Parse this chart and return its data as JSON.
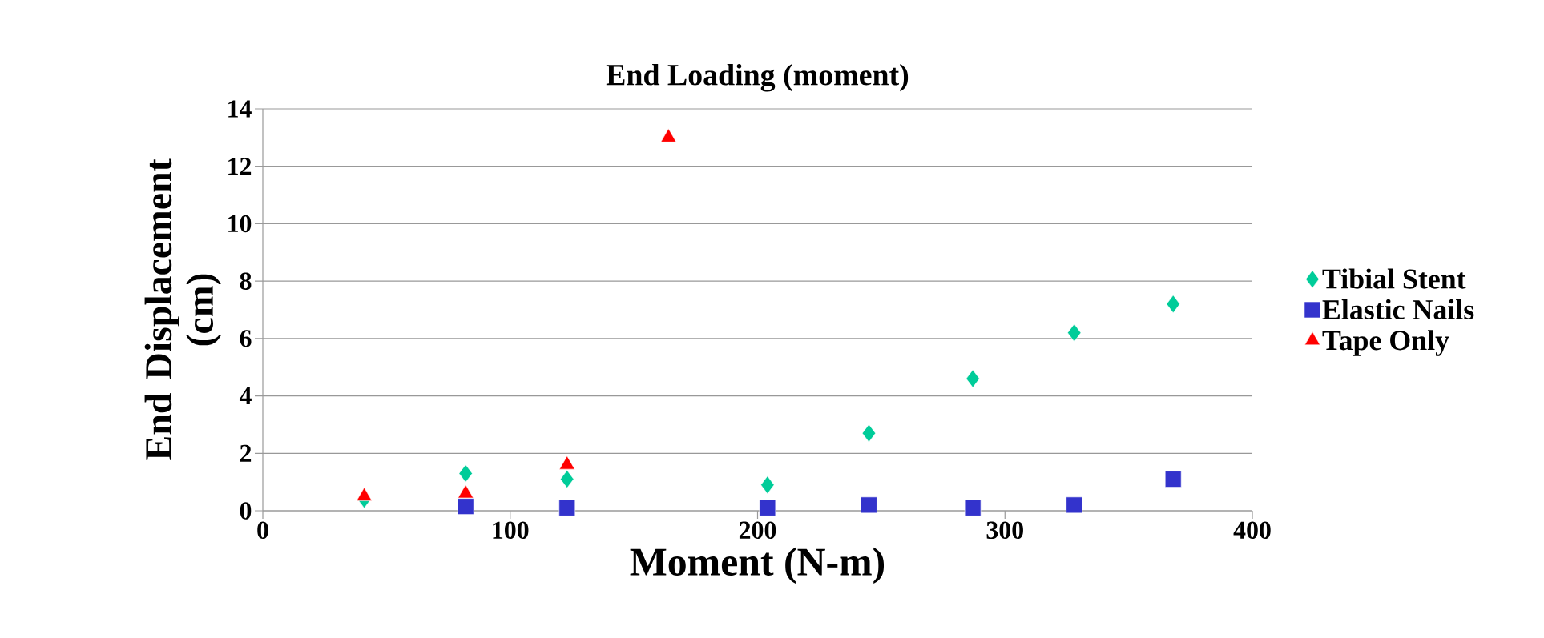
{
  "chart_data": {
    "type": "scatter",
    "title": "End Loading (moment)",
    "xlabel": "Moment (N-m)",
    "ylabel": "End Displacement (cm)",
    "series": [
      {
        "name": "Tibial Stent",
        "color": "#00cc99",
        "marker": "diamond",
        "x": [
          41,
          82,
          123,
          204,
          245,
          287,
          328,
          368
        ],
        "values": [
          0.4,
          1.3,
          1.1,
          0.9,
          2.7,
          4.6,
          6.2,
          7.2
        ]
      },
      {
        "name": "Elastic Nails",
        "color": "#3333cc",
        "marker": "square",
        "x": [
          82,
          123,
          204,
          245,
          287,
          328,
          368
        ],
        "values": [
          0.15,
          0.1,
          0.1,
          0.2,
          0.1,
          0.2,
          1.1
        ]
      },
      {
        "name": "Tape Only",
        "color": "#ff0000",
        "marker": "triangle",
        "x": [
          41,
          82,
          123,
          164
        ],
        "values": [
          0.5,
          0.6,
          1.6,
          13.0
        ]
      }
    ],
    "xlim": [
      0,
      400
    ],
    "xticks": [
      0,
      100,
      200,
      300,
      400
    ],
    "ylim": [
      0,
      14
    ],
    "yticks": [
      0,
      2,
      4,
      6,
      8,
      10,
      12,
      14
    ],
    "grid": "y",
    "legend": "right"
  }
}
